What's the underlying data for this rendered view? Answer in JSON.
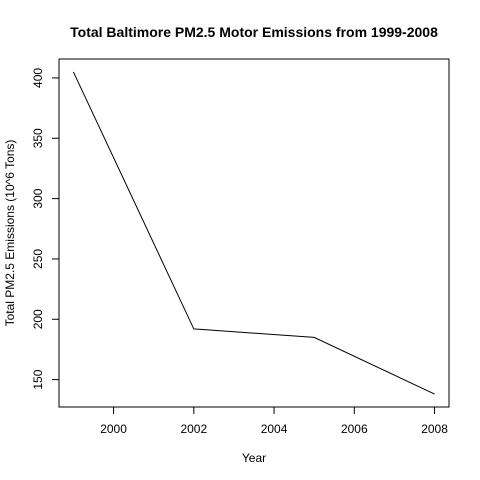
{
  "chart_data": {
    "type": "line",
    "title": "Total Baltimore PM2.5 Motor Emissions from 1999-2008",
    "xlabel": "Year",
    "ylabel": "Total PM2.5 Emissions (10^6 Tons)",
    "x": [
      1999,
      2002,
      2005,
      2008
    ],
    "series": [
      {
        "values": [
          405,
          192,
          185,
          138
        ]
      }
    ],
    "xlim": [
      1998.64,
      2008.36
    ],
    "ylim": [
      127.3,
      415.7
    ],
    "x_ticks": [
      2000,
      2002,
      2004,
      2006,
      2008
    ],
    "x_tick_labels": [
      "2000",
      "2002",
      "2004",
      "2006",
      "2008"
    ],
    "y_ticks": [
      150,
      200,
      250,
      300,
      350,
      400
    ],
    "y_tick_labels": [
      "150",
      "200",
      "250",
      "300",
      "350",
      "400"
    ],
    "grid": false,
    "line_color": "#000000"
  }
}
